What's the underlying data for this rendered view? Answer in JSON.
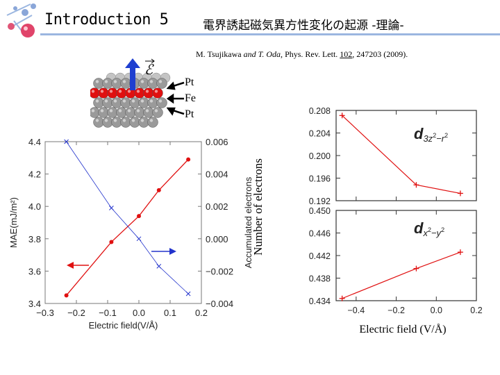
{
  "header": {
    "title": "Introduction 5",
    "subtitle": "電界誘起磁気異方性変化の起源 -理論-"
  },
  "citation": {
    "authors_a": "M. Tsujikawa ",
    "authors_b": "and T. Oda,",
    "journal": " Phys. Rev. Lett. ",
    "volume": "102",
    "pages": ", 247203 (2009)."
  },
  "structure": {
    "field_symbol": "ℰ",
    "labels": [
      "Pt",
      "Fe",
      "Pt"
    ],
    "colors": {
      "pt": "#9a9a9a",
      "fe": "#e01010",
      "field_arrow": "#1f3fd0"
    }
  },
  "right_labels": {
    "ylabel": "Number of electrons",
    "xlabel": "Electric field (V/Å)"
  },
  "chart_data": [
    {
      "type": "line",
      "xlabel": "Electric field(V/Å)",
      "ylabel": "MAE(mJ/m²)",
      "y2label": "Accumulated electrons",
      "xlim": [
        -0.3,
        0.2
      ],
      "ylim": [
        3.4,
        4.4
      ],
      "y2lim": [
        -0.004,
        0.006
      ],
      "xticks": [
        "−0.3",
        "−0.2",
        "−0.1",
        "0.0",
        "0.1",
        "0.2"
      ],
      "yticks": [
        "3.4",
        "3.6",
        "3.8",
        "4.0",
        "4.2",
        "4.4"
      ],
      "y2ticks": [
        "−0.004",
        "−0.002",
        "0.000",
        "0.002",
        "0.004",
        "0.006"
      ],
      "series": [
        {
          "axis": "left",
          "color": "#e01010",
          "marker": "dot",
          "x": [
            -0.232,
            -0.088,
            0.0,
            0.064,
            0.158
          ],
          "y": [
            3.45,
            3.78,
            3.94,
            4.1,
            4.29
          ]
        },
        {
          "axis": "right",
          "color": "#2233cc",
          "marker": "x",
          "x": [
            -0.232,
            -0.088,
            0.0,
            0.064,
            0.158
          ],
          "y": [
            0.006,
            0.0019,
            0.0,
            -0.0017,
            -0.0034
          ]
        }
      ]
    },
    {
      "type": "line",
      "label": "d3z²−r²",
      "xlim": [
        -0.5,
        0.2
      ],
      "ylim": [
        0.192,
        0.208
      ],
      "yticks": [
        "0.192",
        "0.196",
        "0.200",
        "0.204",
        "0.208"
      ],
      "series": [
        {
          "color": "#e01010",
          "marker": "+",
          "x": [
            -0.47,
            -0.1,
            0.12
          ],
          "y": [
            0.2071,
            0.1948,
            0.1933
          ]
        }
      ]
    },
    {
      "type": "line",
      "label": "dx²−y²",
      "xlim": [
        -0.5,
        0.2
      ],
      "ylim": [
        0.434,
        0.45
      ],
      "xticks": [
        "−0.4",
        "−0.2",
        "0.0",
        "0.2"
      ],
      "yticks": [
        "0.434",
        "0.438",
        "0.442",
        "0.446",
        "0.450"
      ],
      "series": [
        {
          "color": "#e01010",
          "marker": "+",
          "x": [
            -0.47,
            -0.1,
            0.12
          ],
          "y": [
            0.4344,
            0.4397,
            0.4426
          ]
        }
      ]
    }
  ]
}
